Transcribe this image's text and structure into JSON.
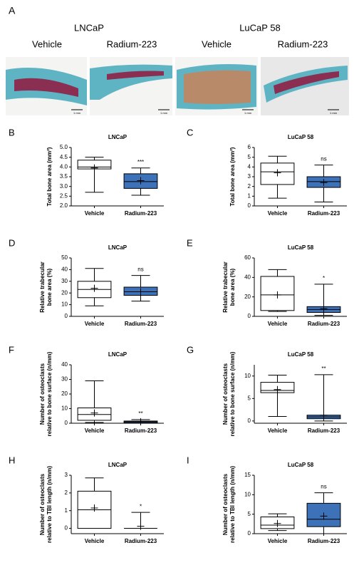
{
  "panel_a": {
    "label": "A",
    "groups": [
      {
        "title": "LNCaP",
        "images": [
          {
            "caption": "Vehicle",
            "scale": "1 mm"
          },
          {
            "caption": "Radium-223",
            "scale": "1 mm"
          }
        ]
      },
      {
        "title": "LuCaP 58",
        "images": [
          {
            "caption": "Vehicle",
            "scale": "1 mm"
          },
          {
            "caption": "Radium-223",
            "scale": "1 mm"
          }
        ]
      }
    ]
  },
  "chart_data": [
    {
      "type": "box",
      "label": "B",
      "title": "LNCaP",
      "ylabel": [
        "Total bone area (mm²)"
      ],
      "categories": [
        "Vehicle",
        "Radium-223"
      ],
      "colors": [
        "#ffffff",
        "#3d72b8"
      ],
      "min": [
        2.7,
        2.55
      ],
      "q1": [
        3.9,
        2.9
      ],
      "median": [
        4.0,
        3.25
      ],
      "q3": [
        4.35,
        3.65
      ],
      "max": [
        4.5,
        3.95
      ],
      "mean": [
        3.95,
        3.3
      ],
      "annotations": [
        null,
        "***"
      ],
      "ylim": [
        2.0,
        5.0
      ],
      "yticks": [
        {
          "value": 2,
          "label": "2.0"
        },
        {
          "value": 2.5,
          "label": "2.5"
        },
        {
          "value": 3,
          "label": "3.0"
        },
        {
          "value": 3.5,
          "label": "3.5"
        },
        {
          "value": 4,
          "label": "4.0"
        },
        {
          "value": 4.5,
          "label": "4.5"
        },
        {
          "value": 5,
          "label": "5.0"
        }
      ]
    },
    {
      "type": "box",
      "label": "C",
      "title": "LuCaP 58",
      "ylabel": [
        "Total bone area (mm²)"
      ],
      "categories": [
        "Vehicle",
        "Radium-223"
      ],
      "colors": [
        "#ffffff",
        "#3d72b8"
      ],
      "min": [
        0.8,
        0.4
      ],
      "q1": [
        2.2,
        1.9
      ],
      "median": [
        3.5,
        2.5
      ],
      "q3": [
        4.4,
        3.0
      ],
      "max": [
        5.1,
        4.2
      ],
      "mean": [
        3.4,
        2.4
      ],
      "annotations": [
        null,
        "ns"
      ],
      "ylim": [
        0,
        6
      ],
      "yticks": [
        0,
        1,
        2,
        3,
        4,
        5,
        6
      ]
    },
    {
      "type": "box",
      "label": "D",
      "title": "LNCaP",
      "ylabel": [
        "Relative trabecular",
        "bone area (%)"
      ],
      "categories": [
        "Vehicle",
        "Radium-223"
      ],
      "colors": [
        "#ffffff",
        "#3d72b8"
      ],
      "min": [
        9,
        13
      ],
      "q1": [
        16,
        18
      ],
      "median": [
        23,
        21
      ],
      "q3": [
        30,
        25
      ],
      "max": [
        41,
        35
      ],
      "mean": [
        24,
        21
      ],
      "annotations": [
        null,
        "ns"
      ],
      "ylim": [
        0,
        50
      ],
      "yticks": [
        0,
        10,
        20,
        30,
        40,
        50
      ]
    },
    {
      "type": "box",
      "label": "E",
      "title": "LuCaP 58",
      "ylabel": [
        "Relative trabecular",
        "bone area (%)"
      ],
      "categories": [
        "Vehicle",
        "Radium-223"
      ],
      "colors": [
        "#ffffff",
        "#3d72b8"
      ],
      "min": [
        5,
        1
      ],
      "q1": [
        6,
        4
      ],
      "median": [
        22,
        7
      ],
      "q3": [
        41,
        10
      ],
      "max": [
        48,
        33
      ],
      "mean": [
        22,
        8
      ],
      "annotations": [
        null,
        "*"
      ],
      "ylim": [
        0,
        60
      ],
      "yticks": [
        0,
        20,
        40,
        60
      ]
    },
    {
      "type": "box",
      "label": "F",
      "title": "LNCaP",
      "ylabel": [
        "Number of osteoclasts",
        "relative to bone surface (n/mm)"
      ],
      "categories": [
        "Vehicle",
        "Radium-223"
      ],
      "colors": [
        "#ffffff",
        "#3d72b8"
      ],
      "min": [
        0.5,
        0
      ],
      "q1": [
        2,
        0.3
      ],
      "median": [
        6,
        1
      ],
      "q3": [
        10.5,
        1.5
      ],
      "max": [
        29,
        2.5
      ],
      "mean": [
        7,
        1
      ],
      "annotations": [
        null,
        "**"
      ],
      "ylim": [
        0,
        40
      ],
      "yticks": [
        0,
        10,
        20,
        30,
        40
      ]
    },
    {
      "type": "box",
      "label": "G",
      "title": "LuCaP 58",
      "ylabel": [
        "Number of osteoclasts",
        "relative to bone surface (n/mm)"
      ],
      "categories": [
        "Vehicle",
        "Radium-223"
      ],
      "colors": [
        "#ffffff",
        "#3d72b8"
      ],
      "min": [
        1,
        0
      ],
      "q1": [
        6.3,
        0.5
      ],
      "median": [
        6.8,
        0.9
      ],
      "q3": [
        8.6,
        1.3
      ],
      "max": [
        10.2,
        10.3
      ],
      "mean": [
        7,
        1.3
      ],
      "annotations": [
        null,
        "**"
      ],
      "ylim": [
        -0.5,
        12.5
      ],
      "yticks": [
        0,
        5,
        10
      ]
    },
    {
      "type": "box",
      "label": "H",
      "title": "LNCaP",
      "ylabel": [
        "Number of osteoclasts",
        "relative to TBI length (n/mm)"
      ],
      "categories": [
        "Vehicle",
        "Radium-223"
      ],
      "colors": [
        "#ffffff",
        "#ffffff"
      ],
      "min": [
        0,
        0
      ],
      "q1": [
        0,
        0
      ],
      "median": [
        1.05,
        0
      ],
      "q3": [
        2.1,
        0
      ],
      "max": [
        2.85,
        0.9
      ],
      "mean": [
        1.15,
        0.12
      ],
      "annotations": [
        null,
        "*"
      ],
      "ylim": [
        -0.3,
        3
      ],
      "yticks": [
        0,
        1,
        2,
        3
      ]
    },
    {
      "type": "box",
      "label": "I",
      "title": "LuCaP 58",
      "ylabel": [
        "Number of osteoclasts",
        "relative to TBI length (n/mm)"
      ],
      "categories": [
        "Vehicle",
        "Radium-223"
      ],
      "colors": [
        "#ffffff",
        "#3d72b8"
      ],
      "min": [
        0.8,
        0
      ],
      "q1": [
        1.3,
        1.8
      ],
      "median": [
        2.2,
        3.7
      ],
      "q3": [
        4.3,
        7.8
      ],
      "max": [
        5.1,
        10.5
      ],
      "mean": [
        2.6,
        4.5
      ],
      "annotations": [
        null,
        "ns"
      ],
      "ylim": [
        0,
        15
      ],
      "yticks": [
        0,
        5,
        10,
        15
      ]
    }
  ]
}
